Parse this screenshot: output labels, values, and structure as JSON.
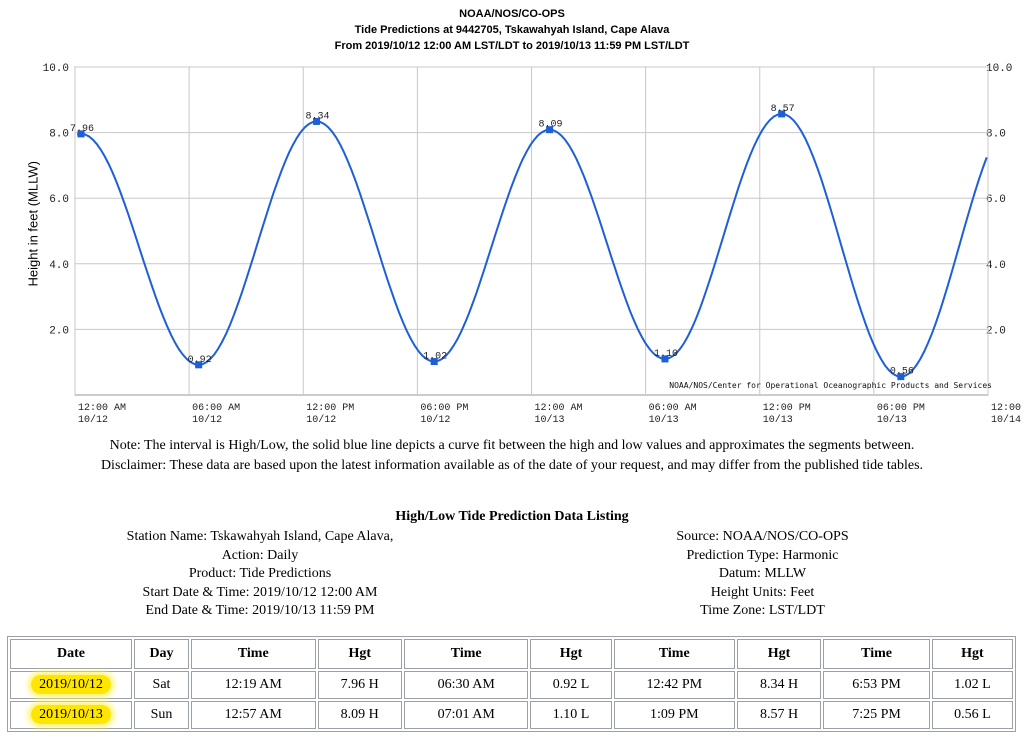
{
  "header": {
    "line1": "NOAA/NOS/CO-OPS",
    "line2": "Tide Predictions at 9442705, Tskawahyah Island, Cape Alava",
    "line3": "From 2019/10/12 12:00 AM LST/LDT to 2019/10/13 11:59 PM LST/LDT"
  },
  "chart_data": {
    "type": "line",
    "title": "Tide Predictions at 9442705, Tskawahyah Island, Cape Alava",
    "ylabel": "Height in feet (MLLW)",
    "ylim": [
      0,
      10
    ],
    "yticks": [
      "10.0",
      "8.0",
      "6.0",
      "4.0",
      "2.0"
    ],
    "grid": true,
    "xticks": [
      {
        "time": "12:00 AM",
        "date": "10/12"
      },
      {
        "time": "06:00 AM",
        "date": "10/12"
      },
      {
        "time": "12:00 PM",
        "date": "10/12"
      },
      {
        "time": "06:00 PM",
        "date": "10/12"
      },
      {
        "time": "12:00 AM",
        "date": "10/13"
      },
      {
        "time": "06:00 AM",
        "date": "10/13"
      },
      {
        "time": "12:00 PM",
        "date": "10/13"
      },
      {
        "time": "06:00 PM",
        "date": "10/13"
      },
      {
        "time": "12:00",
        "date": "10/14"
      }
    ],
    "series": [
      {
        "color": "#1f5fd6",
        "points": [
          {
            "x": "2019-10-12 00:19",
            "y": 7.96,
            "label": "7.96"
          },
          {
            "x": "2019-10-12 06:30",
            "y": 0.92,
            "label": "0.92"
          },
          {
            "x": "2019-10-12 12:42",
            "y": 8.34,
            "label": "8.34"
          },
          {
            "x": "2019-10-12 18:53",
            "y": 1.02,
            "label": "1.02"
          },
          {
            "x": "2019-10-13 00:57",
            "y": 8.09,
            "label": "8.09"
          },
          {
            "x": "2019-10-13 07:01",
            "y": 1.1,
            "label": "1.10"
          },
          {
            "x": "2019-10-13 13:09",
            "y": 8.57,
            "label": "8.57"
          },
          {
            "x": "2019-10-13 19:25",
            "y": 0.56,
            "label": "0.56"
          }
        ]
      }
    ],
    "annotation": "NOAA/NOS/Center for Operational Oceanographic Products and Services"
  },
  "notes": {
    "note": "Note: The interval is High/Low, the solid blue line depicts a curve fit between the high and low values and approximates the segments between.",
    "disclaimer": "Disclaimer: These data are based upon the latest information available as of the date of your request, and may differ from the published tide tables."
  },
  "listing": {
    "title": "High/Low Tide Prediction Data Listing",
    "left": [
      "Station Name: Tskawahyah Island, Cape Alava,",
      "Action: Daily",
      "Product: Tide Predictions",
      "Start Date & Time: 2019/10/12 12:00 AM",
      "End Date & Time: 2019/10/13 11:59 PM"
    ],
    "right": [
      "Source: NOAA/NOS/CO-OPS",
      "Prediction Type: Harmonic",
      "Datum: MLLW",
      "Height Units: Feet",
      "Time Zone: LST/LDT"
    ]
  },
  "table": {
    "headers": [
      "Date",
      "Day",
      "Time",
      "Hgt",
      "Time",
      "Hgt",
      "Time",
      "Hgt",
      "Time",
      "Hgt"
    ],
    "rows": [
      [
        "2019/10/12",
        "Sat",
        "12:19 AM",
        "7.96 H",
        "06:30 AM",
        "0.92 L",
        "12:42 PM",
        "8.34 H",
        "6:53 PM",
        "1.02 L"
      ],
      [
        "2019/10/13",
        "Sun",
        "12:57 AM",
        "8.09 H",
        "07:01 AM",
        "1.10 L",
        "1:09 PM",
        "8.57 H",
        "7:25 PM",
        "0.56 L"
      ]
    ],
    "highlight_color": "#ffe600"
  }
}
